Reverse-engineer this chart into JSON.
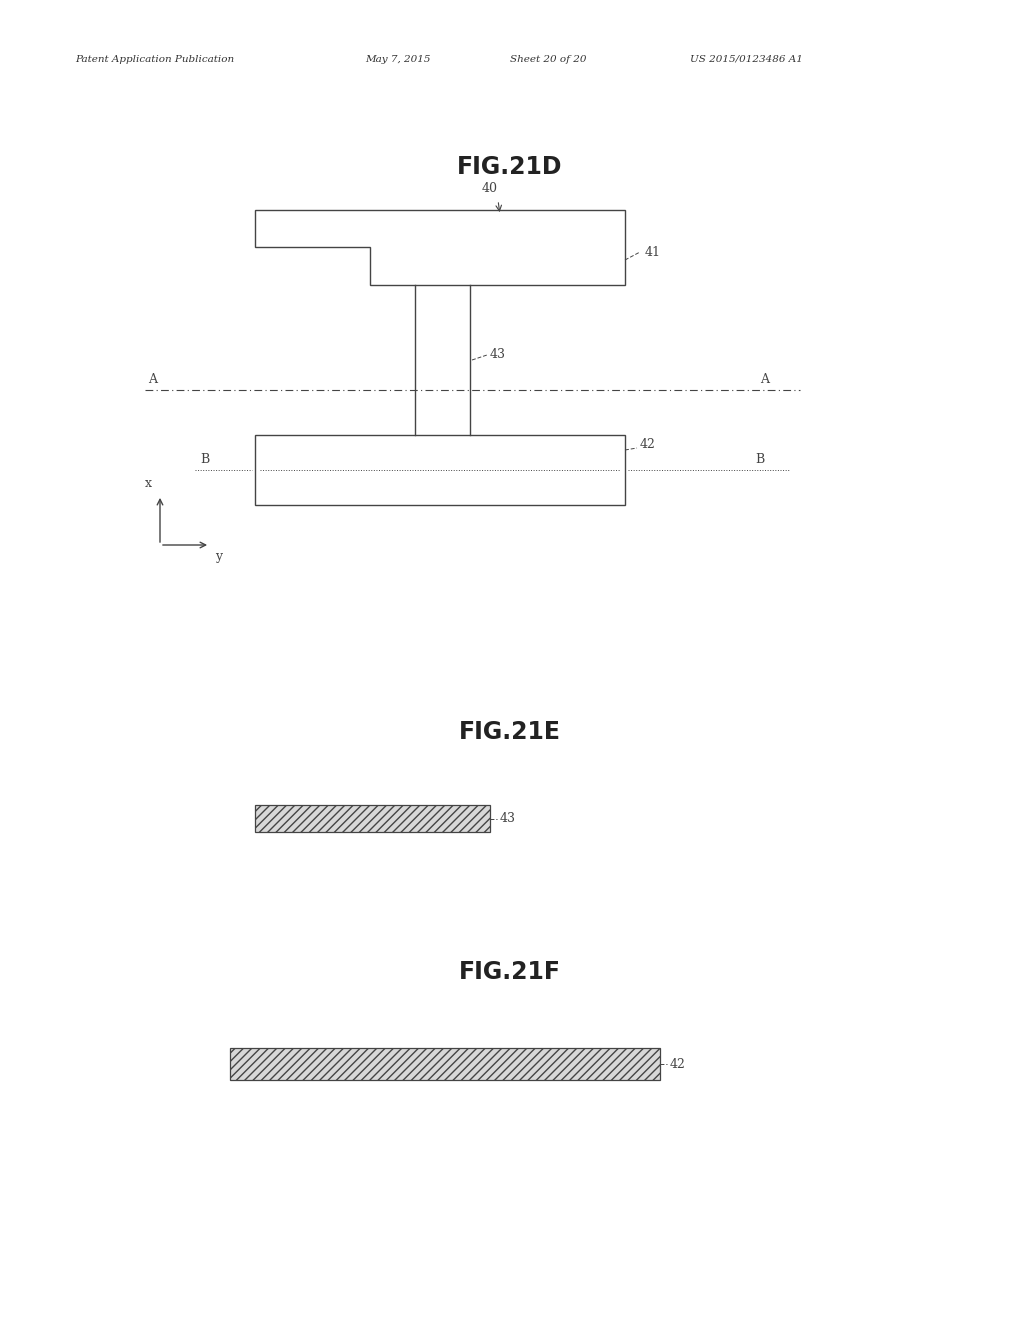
{
  "bg_color": "#ffffff",
  "header_text": "Patent Application Publication",
  "header_date": "May 7, 2015",
  "header_sheet": "Sheet 20 of 20",
  "header_patent": "US 2015/0123486 A1",
  "fig21d_title": "FIG.21D",
  "fig21e_title": "FIG.21E",
  "fig21f_title": "FIG.21F",
  "label_40": "40",
  "label_41": "41",
  "label_42": "42",
  "label_43": "43",
  "label_A": "A",
  "label_B": "B",
  "label_x": "x",
  "label_y": "y",
  "label_43e": "43",
  "label_42f": "42",
  "ec": "#444444",
  "lw": 1.0
}
